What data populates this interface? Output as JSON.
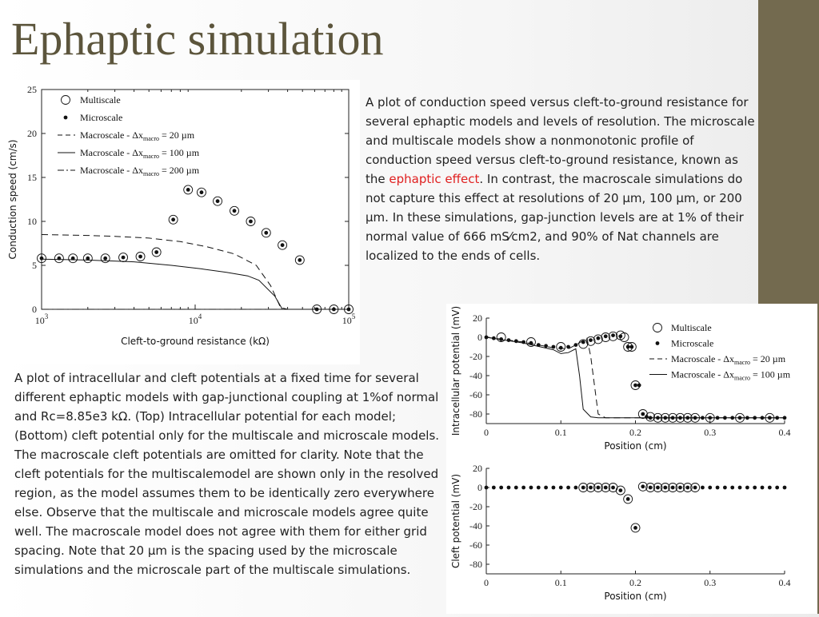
{
  "slide": {
    "title": "Ephaptic simulation",
    "accent_color": "#736a4f",
    "title_color": "#5c553c"
  },
  "desc1": {
    "before": "A plot of conduction speed versus cleft-to-ground resistance for several ephaptic models and levels of resolution. The microscale and multiscale models show a nonmonotonic profile of conduction speed versus cleft-to-ground resistance, known as the ",
    "highlight": "ephaptic effect",
    "after": ". In contrast, the macroscale simulations do not capture this effect at resolutions of 20 µm, 100 µm, or 200 µm. In these simulations, gap-junction levels are at 1% of their normal value of 666 mS⁄cm2, and 90% of Nat channels are localized to the ends of cells.",
    "highlight_color": "#e02020"
  },
  "desc2": {
    "text": "A plot of intracellular and cleft potentials at a fixed time for several different ephaptic models with gap-junctional coupling at 1%of normal and Rc=8.85e3 kΩ. (Top) Intracellular potential for each model; (Bottom) cleft potential only for the multiscale and microscale models. The macroscale cleft potentials are omitted for clarity. Note that the cleft potentials for the multiscalemodel are shown only in the resolved region, as the model assumes them to be identically zero everywhere else. Observe that the multiscale and microscale models agree quite well. The macroscale model does not agree with them for either grid spacing. Note that 20 µm is the spacing used by the microscale simulations and the microscale part of the multiscale simulations."
  },
  "chart_data": [
    {
      "id": "speed",
      "type": "line",
      "title": "",
      "xlabel": "Cleft-to-ground resistance (kΩ)",
      "ylabel": "Conduction speed (cm/s)",
      "xscale": "log",
      "xlim": [
        1000,
        100000
      ],
      "ylim": [
        0,
        25
      ],
      "xticks": [
        {
          "value": 1000,
          "base": "10",
          "exp": "3"
        },
        {
          "value": 10000,
          "base": "10",
          "exp": "4"
        },
        {
          "value": 100000,
          "base": "10",
          "exp": "5"
        }
      ],
      "yticks": [
        0,
        5,
        10,
        15,
        20,
        25
      ],
      "legend_position": "top-left",
      "series": [
        {
          "name": "Multiscale",
          "style": "open-circle",
          "x": [
            1000,
            1300,
            1600,
            2000,
            2600,
            3400,
            4400,
            5600,
            7200,
            9000,
            11000,
            14000,
            18000,
            23000,
            29000,
            37000,
            48000,
            62000,
            80000,
            100000
          ],
          "y": [
            5.8,
            5.8,
            5.8,
            5.8,
            5.8,
            5.9,
            6.0,
            6.5,
            10.2,
            13.6,
            13.3,
            12.3,
            11.2,
            10.0,
            8.7,
            7.3,
            5.6,
            0,
            0,
            0
          ]
        },
        {
          "name": "Microscale",
          "style": "filled-dot",
          "x": [
            1000,
            1300,
            1600,
            2000,
            2600,
            3400,
            4400,
            5600,
            7200,
            9000,
            11000,
            14000,
            18000,
            23000,
            29000,
            37000,
            48000,
            62000,
            80000,
            100000
          ],
          "y": [
            5.8,
            5.8,
            5.8,
            5.8,
            5.8,
            5.9,
            6.0,
            6.5,
            10.2,
            13.6,
            13.3,
            12.3,
            11.2,
            10.0,
            8.7,
            7.3,
            5.6,
            0,
            0,
            0
          ]
        },
        {
          "name": "Macroscale - Δx_macro = 20 µm",
          "style": "dashed",
          "x": [
            1000,
            1500,
            2000,
            3000,
            5000,
            8000,
            12000,
            18000,
            25000,
            31000,
            36000,
            40000,
            100000
          ],
          "y": [
            8.5,
            8.45,
            8.4,
            8.3,
            8.1,
            7.7,
            7.1,
            6.3,
            5.0,
            2.7,
            0.2,
            0,
            0
          ]
        },
        {
          "name": "Macroscale - Δx_macro = 100 µm",
          "style": "solid",
          "x": [
            1000,
            2000,
            4000,
            7000,
            11000,
            16000,
            22000,
            26000,
            33000,
            37000,
            100000
          ],
          "y": [
            5.7,
            5.6,
            5.4,
            5.0,
            4.6,
            4.2,
            3.8,
            3.3,
            1.5,
            0,
            0
          ]
        },
        {
          "name": "Macroscale - Δx_macro = 200 µm",
          "style": "dashdot",
          "x": [
            1000,
            100000
          ],
          "y": [
            0,
            0
          ]
        }
      ]
    },
    {
      "id": "intracellular",
      "type": "line",
      "title": "",
      "xlabel": "Position (cm)",
      "ylabel": "Intracellular potential (mV)",
      "xlim": [
        0,
        0.4
      ],
      "ylim": [
        -90,
        20
      ],
      "xticks": [
        "0",
        "0.1",
        "0.2",
        "0.3",
        "0.4"
      ],
      "yticks": [
        "20",
        "0",
        "-20",
        "-40",
        "-60",
        "-80"
      ],
      "legend_position": "top-right",
      "series": [
        {
          "name": "Multiscale",
          "style": "open-circle",
          "x": [
            0.02,
            0.06,
            0.1,
            0.13,
            0.14,
            0.15,
            0.16,
            0.17,
            0.18,
            0.185,
            0.19,
            0.195,
            0.2,
            0.21,
            0.22,
            0.23,
            0.24,
            0.25,
            0.26,
            0.27,
            0.28,
            0.3,
            0.34,
            0.38
          ],
          "y": [
            0,
            -5,
            -10,
            -7,
            -4,
            -2,
            0,
            1,
            2,
            0,
            -10,
            -10,
            -50,
            -80,
            -83,
            -84,
            -84,
            -84,
            -84,
            -84,
            -84,
            -84,
            -84,
            -84
          ]
        },
        {
          "name": "Microscale",
          "style": "filled-dot",
          "x": [
            0,
            0.01,
            0.02,
            0.03,
            0.04,
            0.05,
            0.06,
            0.07,
            0.08,
            0.09,
            0.1,
            0.11,
            0.12,
            0.13,
            0.14,
            0.15,
            0.16,
            0.17,
            0.18,
            0.19,
            0.195,
            0.2,
            0.205,
            0.21,
            0.215,
            0.22,
            0.23,
            0.24,
            0.25,
            0.26,
            0.27,
            0.28,
            0.29,
            0.3,
            0.31,
            0.32,
            0.33,
            0.34,
            0.35,
            0.36,
            0.37,
            0.38,
            0.39,
            0.4
          ],
          "y": [
            0,
            -1,
            -2,
            -3,
            -4,
            -5,
            -6,
            -8,
            -9,
            -10,
            -11,
            -10,
            -8,
            -5,
            -3,
            -1,
            1,
            2,
            1,
            -10,
            -10,
            -50,
            -50,
            -80,
            -83,
            -84,
            -84,
            -84,
            -84,
            -84,
            -84,
            -84,
            -84,
            -84,
            -84,
            -84,
            -84,
            -84,
            -84,
            -84,
            -84,
            -84,
            -84,
            -84
          ]
        },
        {
          "name": "Macroscale - Δx_macro = 20 µm",
          "style": "dashed",
          "x": [
            0,
            0.05,
            0.09,
            0.11,
            0.12,
            0.135,
            0.14,
            0.15,
            0.16,
            0.4
          ],
          "y": [
            0,
            -5,
            -11,
            -12,
            -8,
            -1,
            -20,
            -80,
            -84,
            -84
          ]
        },
        {
          "name": "Macroscale - Δx_macro = 100 µm",
          "style": "solid",
          "x": [
            0,
            0.05,
            0.09,
            0.1,
            0.11,
            0.12,
            0.125,
            0.13,
            0.14,
            0.15,
            0.4
          ],
          "y": [
            0,
            -6,
            -13,
            -17,
            -16,
            -12,
            -40,
            -75,
            -83,
            -84,
            -84
          ]
        }
      ]
    },
    {
      "id": "cleft",
      "type": "scatter",
      "title": "",
      "xlabel": "Position (cm)",
      "ylabel": "Cleft potential (mV)",
      "xlim": [
        0,
        0.4
      ],
      "ylim": [
        -90,
        20
      ],
      "xticks": [
        "0",
        "0.1",
        "0.2",
        "0.3",
        "0.4"
      ],
      "yticks": [
        "20",
        "0",
        "-20",
        "-40",
        "-60",
        "-80"
      ],
      "series": [
        {
          "name": "Multiscale",
          "style": "open-circle",
          "x": [
            0.13,
            0.14,
            0.15,
            0.16,
            0.17,
            0.18,
            0.19,
            0.2,
            0.21,
            0.22,
            0.23,
            0.24,
            0.25,
            0.26,
            0.27,
            0.28
          ],
          "y": [
            0,
            0,
            0,
            0,
            0,
            -3,
            -12,
            -42,
            1,
            0,
            0,
            0,
            0,
            0,
            0,
            0
          ]
        },
        {
          "name": "Microscale",
          "style": "filled-dot",
          "x": [
            0,
            0.01,
            0.02,
            0.03,
            0.04,
            0.05,
            0.06,
            0.07,
            0.08,
            0.09,
            0.1,
            0.11,
            0.12,
            0.13,
            0.14,
            0.15,
            0.16,
            0.17,
            0.18,
            0.19,
            0.2,
            0.21,
            0.22,
            0.23,
            0.24,
            0.25,
            0.26,
            0.27,
            0.28,
            0.29,
            0.3,
            0.31,
            0.32,
            0.33,
            0.34,
            0.35,
            0.36,
            0.37,
            0.38,
            0.39,
            0.4
          ],
          "y": [
            0,
            0,
            0,
            0,
            0,
            0,
            0,
            0,
            0,
            0,
            0,
            0,
            0,
            0,
            0,
            0,
            0,
            0,
            -3,
            -12,
            -42,
            1,
            0,
            0,
            0,
            0,
            0,
            0,
            0,
            0,
            0,
            0,
            0,
            0,
            0,
            0,
            0,
            0,
            0,
            0,
            0
          ]
        }
      ]
    }
  ]
}
